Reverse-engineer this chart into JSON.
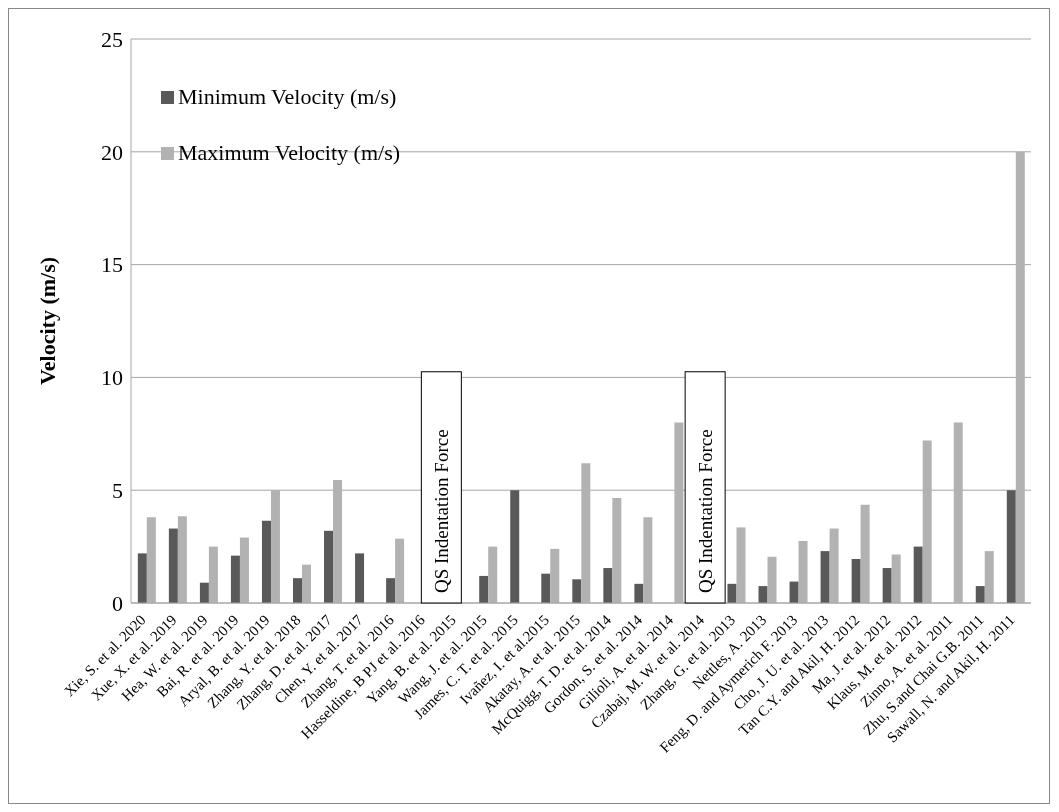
{
  "chart_data": {
    "type": "bar",
    "ylabel": "Velocity (m/s)",
    "categories": [
      "Xie, S. et al. 2020",
      "Xue, X. et al. 2019",
      "Hea, W. et al. 2019",
      "Bai, R. et al. 2019",
      "Aryal, B. et al. 2019",
      "Zhang, Y. et al. 2018",
      "Zhang, D. et al. 2017",
      "Chen, Y. et al. 2017",
      "Zhang, T. et al. 2016",
      "Hasseldine, B PJ et al. 2016",
      "Yang, B. et al. 2015",
      "Wang, J. et al. 2015",
      "James, C. T. et al. 2015",
      "Ivañez, I. et al.2015",
      "Akatay, A. et al. 2015",
      "McQuigg, T. D. et al. 2014",
      "Gordon, S. et al. 2014",
      "Gilioli, A. et al. 2014",
      "Czabaj, M. W. et al. 2014",
      "Zhang, G. et al. 2013",
      "Nettles, A. 2013",
      "Feng, D. and Aymerich F. 2013",
      "Cho, J. U. et al. 2013",
      "Tan C.Y. and Akil, H. 2012",
      "Ma, J. et al. 2012",
      "Klaus, M. et al. 2012",
      "Zinno, A. et al. 2011",
      "Zhu, S.and Chai G.B. 2011",
      "Sawall, N. and Akil, H. 2011"
    ],
    "series": [
      {
        "name": "Minimum Velocity (m/s)",
        "color": "#595959",
        "values": [
          2.2,
          3.3,
          0.9,
          2.1,
          3.65,
          1.1,
          3.2,
          2.2,
          1.1,
          null,
          null,
          1.2,
          5,
          1.3,
          1.05,
          1.55,
          0.85,
          null,
          null,
          0.85,
          0.75,
          0.95,
          2.3,
          1.95,
          1.55,
          2.5,
          null,
          0.75,
          5
        ]
      },
      {
        "name": "Maximum Velocity (m/s)",
        "color": "#b2b2b2",
        "values": [
          3.8,
          3.85,
          2.5,
          2.9,
          5,
          1.7,
          5.45,
          null,
          2.85,
          null,
          null,
          2.5,
          null,
          2.4,
          6.2,
          4.65,
          3.8,
          8,
          null,
          3.35,
          2.05,
          2.75,
          3.3,
          4.35,
          2.15,
          7.2,
          8,
          2.3,
          20
        ]
      }
    ],
    "ylim": [
      0,
      25
    ],
    "yticks": [
      0,
      5,
      10,
      15,
      20,
      25
    ],
    "grid": "y",
    "legend": "top left",
    "annotations": [
      "QS Indentation Force",
      "QS Indentation Force"
    ]
  }
}
